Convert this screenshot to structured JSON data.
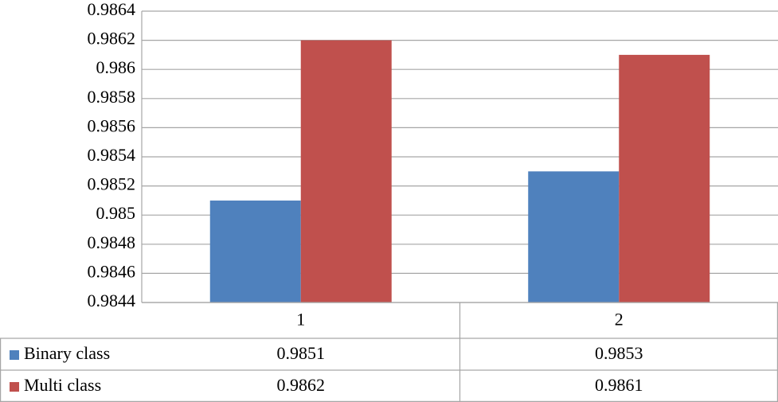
{
  "chart_data": {
    "type": "bar",
    "categories": [
      "1",
      "2"
    ],
    "series": [
      {
        "name": "Binary class",
        "color": "#4f81bd",
        "values": [
          0.9851,
          0.9853
        ]
      },
      {
        "name": "Multi class",
        "color": "#c0504d",
        "values": [
          0.9862,
          0.9861
        ]
      }
    ],
    "ylim": [
      0.9844,
      0.9864
    ],
    "yticks": [
      0.9844,
      0.9846,
      0.9848,
      0.985,
      0.9852,
      0.9854,
      0.9856,
      0.9858,
      0.986,
      0.9862,
      0.9864
    ],
    "grid": true
  }
}
